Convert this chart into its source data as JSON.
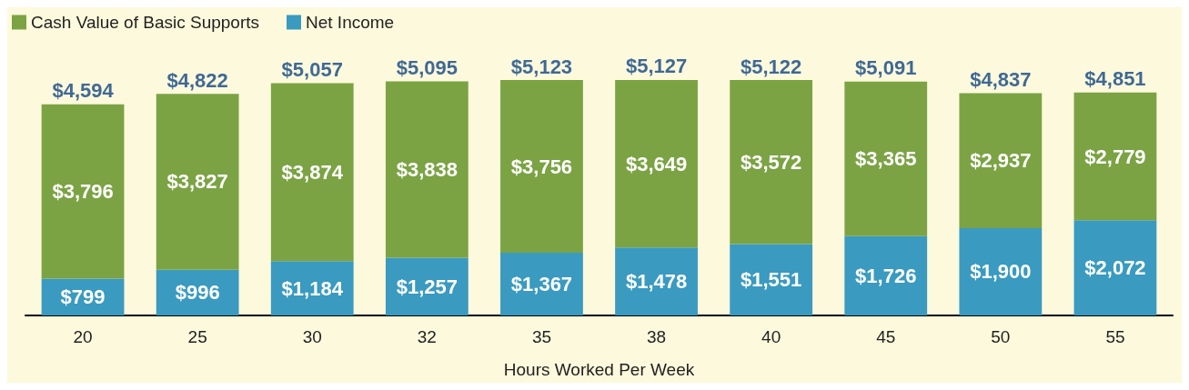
{
  "chart_data": {
    "type": "bar",
    "stacked": true,
    "xlabel": "Hours Worked Per Week",
    "categories": [
      "20",
      "25",
      "30",
      "32",
      "35",
      "38",
      "40",
      "45",
      "50",
      "55"
    ],
    "series": [
      {
        "name": "Net Income",
        "color": "#3a9ac0",
        "values": [
          799,
          996,
          1184,
          1257,
          1367,
          1478,
          1551,
          1726,
          1900,
          2072
        ],
        "value_labels": [
          "$799",
          "$996",
          "$1,184",
          "$1,257",
          "$1,367",
          "$1,478",
          "$1,551",
          "$1,726",
          "$1,900",
          "$2,072"
        ]
      },
      {
        "name": "Cash Value of Basic Supports",
        "color": "#7ba344",
        "values": [
          3796,
          3827,
          3874,
          3838,
          3756,
          3649,
          3572,
          3365,
          2937,
          2779
        ],
        "value_labels": [
          "$3,796",
          "$3,827",
          "$3,874",
          "$3,838",
          "$3,756",
          "$3,649",
          "$3,572",
          "$3,365",
          "$2,937",
          "$2,779"
        ]
      }
    ],
    "totals": [
      "$4,594",
      "$4,822",
      "$5,057",
      "$5,095",
      "$5,123",
      "$5,127",
      "$5,122",
      "$5,091",
      "$4,837",
      "$4,851"
    ],
    "legend": "top left",
    "grid": false
  }
}
